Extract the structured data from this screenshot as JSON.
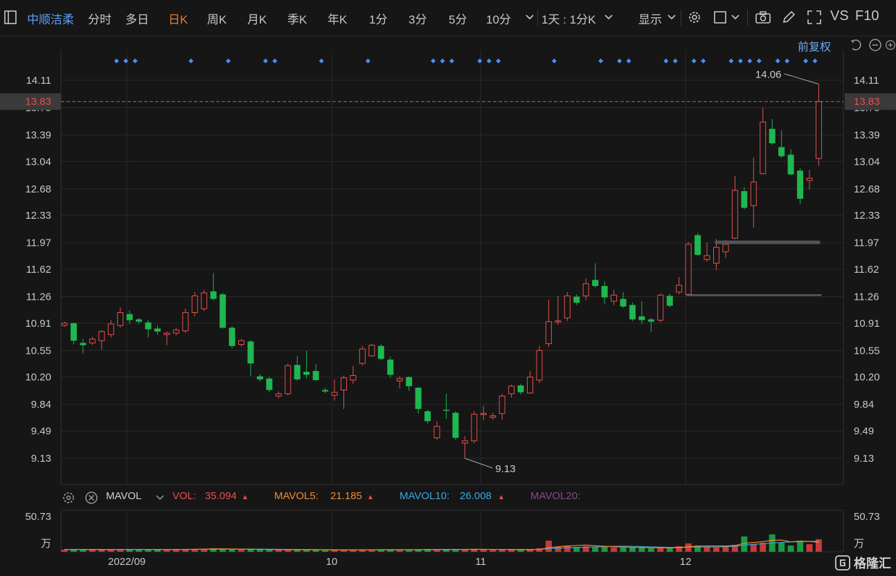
{
  "toolbar": {
    "stock_name": "中顺洁柔",
    "periods": [
      "分时",
      "多日",
      "日K",
      "周K",
      "月K",
      "季K",
      "年K",
      "1分",
      "3分",
      "5分",
      "10分"
    ],
    "active_period": "日K",
    "interval_select": "1天 : 1分K",
    "display_label": "显示",
    "vs_label": "VS",
    "f10_label": "F10"
  },
  "adjust_label": "前复权",
  "colors": {
    "up": "#e8504a",
    "down": "#1fb74f",
    "accent": "#f07a28",
    "price_line": "#e05a3c",
    "marker": "#4d8ff0"
  },
  "volume_legend": {
    "name": "MAVOL",
    "vol_label": "VOL:",
    "vol_value": "35.094",
    "ma5_label": "MAVOL5:",
    "ma5_value": "21.185",
    "ma10_label": "MAVOL10:",
    "ma10_value": "26.008",
    "ma20_label": "MAVOL20:",
    "ma20_value": "",
    "axis_max": "50.73",
    "axis_unit": "万"
  },
  "chart_data": {
    "type": "candlestick",
    "y_ticks": [
      14.11,
      13.75,
      13.39,
      13.04,
      12.68,
      12.33,
      11.97,
      11.62,
      11.26,
      10.91,
      10.55,
      10.2,
      9.84,
      9.49,
      9.13
    ],
    "current_price": "13.83",
    "max_label": "14.06",
    "min_label": "9.13",
    "x_labels": [
      "2022/09",
      "10",
      "11",
      "12"
    ],
    "x_label_index": [
      7,
      29,
      45,
      67
    ],
    "candles": [
      [
        10.88,
        10.91,
        10.93,
        10.86
      ],
      [
        10.91,
        10.68,
        10.92,
        10.63
      ],
      [
        10.65,
        10.62,
        10.7,
        10.51
      ],
      [
        10.65,
        10.7,
        10.73,
        10.62
      ],
      [
        10.68,
        10.8,
        10.82,
        10.56
      ],
      [
        10.76,
        10.9,
        10.95,
        10.72
      ],
      [
        10.88,
        11.05,
        11.12,
        10.85
      ],
      [
        11.03,
        10.95,
        11.08,
        10.9
      ],
      [
        10.96,
        10.93,
        10.98,
        10.9
      ],
      [
        10.92,
        10.83,
        10.95,
        10.72
      ],
      [
        10.84,
        10.8,
        10.88,
        10.76
      ],
      [
        10.76,
        10.78,
        10.8,
        10.62
      ],
      [
        10.78,
        10.82,
        10.85,
        10.75
      ],
      [
        10.81,
        11.05,
        11.1,
        10.78
      ],
      [
        11.05,
        11.27,
        11.32,
        11.0
      ],
      [
        11.1,
        11.31,
        11.35,
        11.07
      ],
      [
        11.33,
        11.23,
        11.57,
        11.21
      ],
      [
        11.29,
        10.85,
        11.31,
        10.84
      ],
      [
        10.85,
        10.61,
        10.87,
        10.58
      ],
      [
        10.63,
        10.68,
        10.7,
        10.6
      ],
      [
        10.67,
        10.38,
        10.69,
        10.21
      ],
      [
        10.21,
        10.17,
        10.24,
        10.14
      ],
      [
        10.18,
        10.03,
        10.2,
        10.0
      ],
      [
        9.95,
        9.98,
        10.01,
        9.92
      ],
      [
        9.98,
        10.35,
        10.38,
        9.96
      ],
      [
        10.36,
        10.17,
        10.48,
        10.15
      ],
      [
        10.27,
        10.23,
        10.55,
        10.18
      ],
      [
        10.28,
        10.16,
        10.37,
        10.15
      ],
      [
        10.03,
        10.01,
        10.06,
        9.99
      ],
      [
        9.96,
        10.0,
        10.17,
        9.89
      ],
      [
        10.03,
        10.19,
        10.22,
        9.78
      ],
      [
        10.16,
        10.22,
        10.35,
        10.11
      ],
      [
        10.38,
        10.57,
        10.61,
        10.35
      ],
      [
        10.48,
        10.62,
        10.64,
        10.47
      ],
      [
        10.61,
        10.44,
        10.63,
        10.42
      ],
      [
        10.43,
        10.23,
        10.47,
        10.19
      ],
      [
        10.15,
        10.18,
        10.21,
        10.05
      ],
      [
        10.2,
        10.08,
        10.21,
        10.02
      ],
      [
        10.06,
        9.78,
        10.07,
        9.72
      ],
      [
        9.75,
        9.62,
        9.77,
        9.59
      ],
      [
        9.4,
        9.55,
        9.62,
        9.37
      ],
      [
        9.77,
        9.76,
        9.98,
        9.65
      ],
      [
        9.73,
        9.4,
        9.75,
        9.37
      ],
      [
        9.33,
        9.36,
        9.42,
        9.13
      ],
      [
        9.36,
        9.71,
        9.75,
        9.33
      ],
      [
        9.71,
        9.72,
        9.82,
        9.63
      ],
      [
        9.67,
        9.69,
        9.73,
        9.64
      ],
      [
        9.72,
        9.95,
        9.98,
        9.64
      ],
      [
        9.98,
        10.08,
        10.1,
        9.93
      ],
      [
        10.09,
        10.0,
        10.11,
        9.97
      ],
      [
        9.99,
        10.2,
        10.28,
        9.98
      ],
      [
        10.16,
        10.55,
        10.61,
        10.12
      ],
      [
        10.64,
        10.93,
        11.22,
        10.6
      ],
      [
        10.93,
        10.94,
        11.27,
        10.89
      ],
      [
        10.98,
        11.27,
        11.32,
        10.94
      ],
      [
        11.26,
        11.18,
        11.29,
        11.15
      ],
      [
        11.27,
        11.43,
        11.5,
        11.21
      ],
      [
        11.48,
        11.4,
        11.7,
        11.38
      ],
      [
        11.4,
        11.25,
        11.46,
        11.16
      ],
      [
        11.2,
        11.28,
        11.35,
        11.15
      ],
      [
        11.23,
        11.13,
        11.32,
        11.11
      ],
      [
        11.15,
        10.96,
        11.18,
        10.94
      ],
      [
        11.0,
        10.95,
        11.2,
        10.9
      ],
      [
        10.96,
        10.93,
        10.98,
        10.8
      ],
      [
        10.95,
        11.28,
        11.3,
        10.92
      ],
      [
        11.27,
        11.14,
        11.3,
        11.12
      ],
      [
        11.32,
        11.41,
        11.52,
        11.29
      ],
      [
        11.29,
        11.95,
        11.98,
        11.28
      ],
      [
        12.07,
        11.81,
        12.1,
        11.8
      ],
      [
        11.75,
        11.8,
        11.97,
        11.72
      ],
      [
        11.7,
        11.91,
        12.02,
        11.61
      ],
      [
        11.85,
        11.95,
        12.01,
        11.77
      ],
      [
        12.03,
        12.66,
        12.85,
        12.02
      ],
      [
        12.65,
        12.43,
        12.7,
        12.41
      ],
      [
        12.46,
        12.77,
        13.09,
        12.17
      ],
      [
        12.88,
        13.56,
        13.75,
        12.87
      ],
      [
        13.47,
        13.28,
        13.6,
        13.26
      ],
      [
        13.23,
        13.11,
        13.45,
        13.09
      ],
      [
        13.13,
        12.87,
        13.2,
        12.86
      ],
      [
        12.92,
        12.55,
        12.95,
        12.48
      ],
      [
        12.79,
        12.82,
        12.93,
        12.67
      ],
      [
        13.08,
        13.83,
        14.06,
        12.98
      ]
    ],
    "volumes": [
      3,
      4,
      3,
      3,
      3,
      3,
      4,
      3,
      3,
      3,
      3,
      3,
      3,
      4,
      4,
      4,
      5,
      4,
      3,
      3,
      3,
      3,
      3,
      3,
      3,
      3,
      3,
      3,
      2,
      2,
      3,
      3,
      3,
      3,
      3,
      3,
      3,
      3,
      3,
      4,
      3,
      4,
      3,
      3,
      4,
      3,
      3,
      3,
      3,
      3,
      3,
      5,
      16,
      7,
      9,
      7,
      8,
      7,
      7,
      6,
      6,
      6,
      6,
      5,
      6,
      5,
      8,
      12,
      9,
      7,
      6,
      7,
      10,
      22,
      11,
      13,
      25,
      13,
      9,
      16,
      11,
      18
    ],
    "ma5": [
      3.2,
      3.3,
      3.3,
      3.2,
      3.2,
      3.2,
      3.3,
      3.3,
      3.3,
      3.3,
      3.2,
      3.2,
      3.2,
      3.4,
      3.6,
      3.8,
      4.1,
      4.2,
      4.0,
      3.8,
      3.6,
      3.4,
      3.2,
      3.1,
      3.0,
      3.0,
      3.0,
      3.0,
      2.8,
      2.6,
      2.6,
      2.6,
      2.8,
      2.9,
      3.0,
      3.0,
      3.0,
      3.0,
      3.0,
      3.2,
      3.2,
      3.4,
      3.4,
      3.4,
      3.6,
      3.5,
      3.4,
      3.3,
      3.2,
      3.0,
      3.0,
      3.4,
      5.8,
      7.2,
      8.2,
      9.0,
      9.6,
      8.6,
      7.8,
      7.2,
      6.8,
      6.4,
      6.2,
      5.8,
      5.8,
      5.6,
      6.0,
      7.2,
      8.0,
      8.4,
      8.4,
      8.2,
      8.8,
      12.4,
      13.2,
      14.6,
      16.4,
      16.8,
      14.2,
      15.2,
      14.8,
      13.6
    ],
    "ma10": [
      3.2,
      3.2,
      3.2,
      3.2,
      3.2,
      3.2,
      3.3,
      3.3,
      3.3,
      3.3,
      3.3,
      3.3,
      3.3,
      3.3,
      3.4,
      3.5,
      3.6,
      3.7,
      3.7,
      3.7,
      3.7,
      3.7,
      3.6,
      3.5,
      3.4,
      3.3,
      3.2,
      3.1,
      3.0,
      2.9,
      2.8,
      2.8,
      2.8,
      2.8,
      2.8,
      2.8,
      2.8,
      2.9,
      3.0,
      3.1,
      3.1,
      3.2,
      3.3,
      3.3,
      3.4,
      3.4,
      3.4,
      3.4,
      3.4,
      3.4,
      3.3,
      3.5,
      4.6,
      5.2,
      5.7,
      6.1,
      6.4,
      6.9,
      7.4,
      7.8,
      8.0,
      7.9,
      7.4,
      7.0,
      6.6,
      6.3,
      6.2,
      6.6,
      6.9,
      7.0,
      7.0,
      7.3,
      7.9,
      9.6,
      10.6,
      11.6,
      12.5,
      13.5,
      14.1,
      14.6,
      14.8,
      15.2
    ]
  }
}
